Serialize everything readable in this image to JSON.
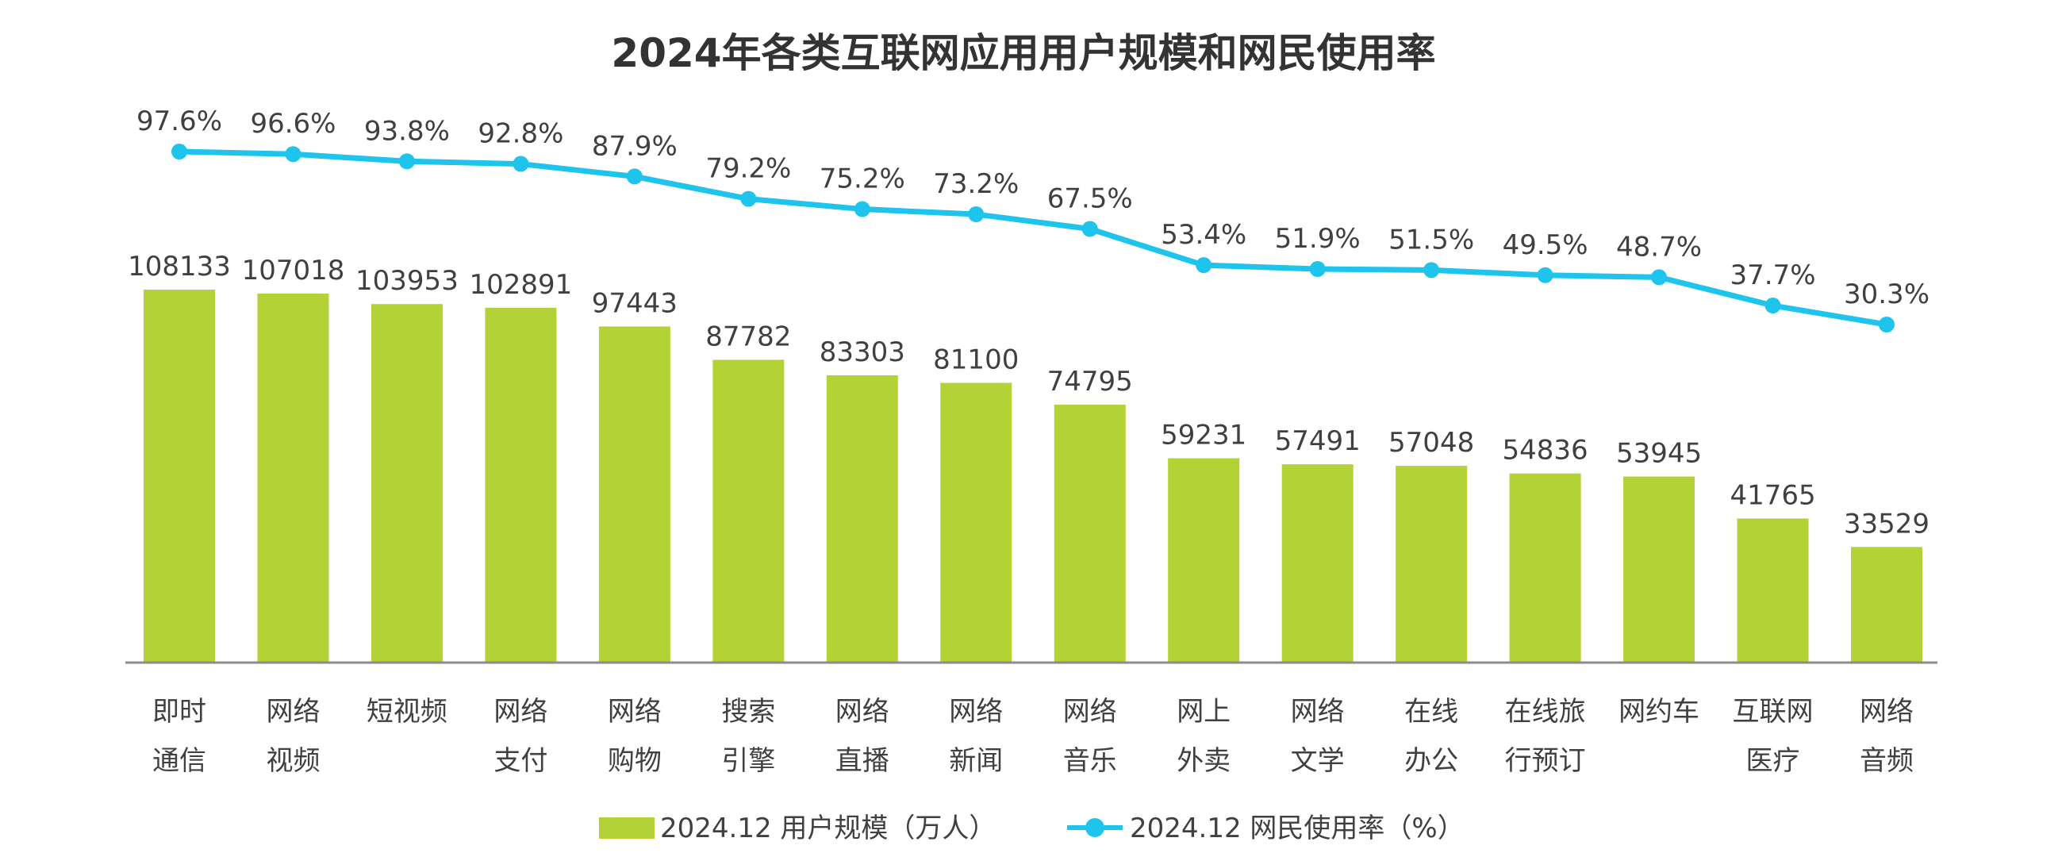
{
  "chart_data": {
    "type": "bar",
    "title": "2024年各类互联网应用用户规模和网民使用率",
    "categories": [
      [
        "即时",
        "通信"
      ],
      [
        "网络",
        "视频"
      ],
      [
        "短视频"
      ],
      [
        "网络",
        "支付"
      ],
      [
        "网络",
        "购物"
      ],
      [
        "搜索",
        "引擎"
      ],
      [
        "网络",
        "直播"
      ],
      [
        "网络",
        "新闻"
      ],
      [
        "网络",
        "音乐"
      ],
      [
        "网上",
        "外卖"
      ],
      [
        "网络",
        "文学"
      ],
      [
        "在线",
        "办公"
      ],
      [
        "在线旅",
        "行预订"
      ],
      [
        "网约车"
      ],
      [
        "互联网",
        "医疗"
      ],
      [
        "网络",
        "音频"
      ]
    ],
    "series": [
      {
        "name": "2024.12 用户规模（万人）",
        "kind": "bar",
        "color": "#B2D235",
        "values": [
          108133,
          107018,
          103953,
          102891,
          97443,
          87782,
          83303,
          81100,
          74795,
          59231,
          57491,
          57048,
          54836,
          53945,
          41765,
          33529
        ],
        "labels": [
          "108133",
          "107018",
          "103953",
          "102891",
          "97443",
          "87782",
          "83303",
          "81100",
          "74795",
          "59231",
          "57491",
          "57048",
          "54836",
          "53945",
          "41765",
          "33529"
        ]
      },
      {
        "name": "2024.12 网民使用率（%）",
        "kind": "line",
        "color": "#1FC4EC",
        "values": [
          97.6,
          96.6,
          93.8,
          92.8,
          87.9,
          79.2,
          75.2,
          73.2,
          67.5,
          53.4,
          51.9,
          51.5,
          49.5,
          48.7,
          37.7,
          30.3
        ],
        "labels": [
          "97.6%",
          "96.6%",
          "93.8%",
          "92.8%",
          "87.9%",
          "79.2%",
          "75.2%",
          "73.2%",
          "67.5%",
          "53.4%",
          "51.9%",
          "51.5%",
          "49.5%",
          "48.7%",
          "37.7%",
          "30.3%"
        ]
      }
    ],
    "ylim_bar": [
      0,
      108133
    ],
    "legend_position": "bottom",
    "grid": false
  }
}
